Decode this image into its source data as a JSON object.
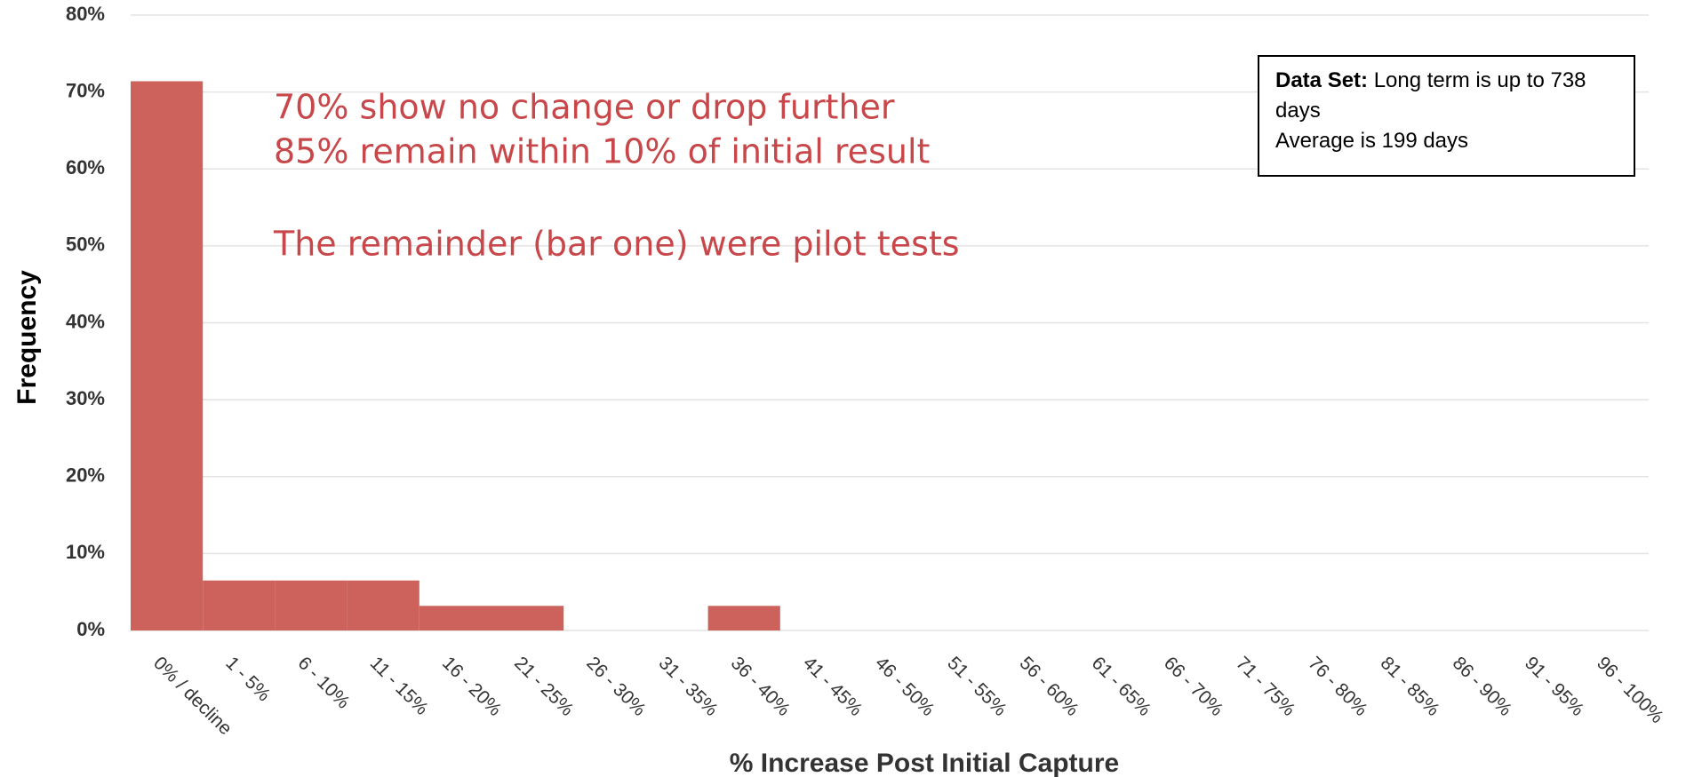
{
  "chart_data": {
    "type": "bar",
    "categories": [
      "0% / decline",
      "1 - 5%",
      "6 - 10%",
      "11 - 15%",
      "16 - 20%",
      "21 - 25%",
      "26 - 30%",
      "31 - 35%",
      "36 - 40%",
      "41 - 45%",
      "46 - 50%",
      "51 - 55%",
      "56 - 60%",
      "61 - 65%",
      "66 - 70%",
      "71 - 75%",
      "76 - 80%",
      "81 - 85%",
      "86 - 90%",
      "91 - 95%",
      "96 - 100%"
    ],
    "values": [
      71.4,
      6.5,
      6.5,
      6.5,
      3.2,
      3.2,
      0,
      0,
      3.2,
      0,
      0,
      0,
      0,
      0,
      0,
      0,
      0,
      0,
      0,
      0,
      0
    ],
    "color": "#cd625c",
    "ylim": [
      0,
      80
    ],
    "yticks": [
      {
        "value": 0,
        "label": "0%"
      },
      {
        "value": 10,
        "label": "10%"
      },
      {
        "value": 20,
        "label": "20%"
      },
      {
        "value": 30,
        "label": "30%"
      },
      {
        "value": 40,
        "label": "40%"
      },
      {
        "value": 50,
        "label": "50%"
      },
      {
        "value": 60,
        "label": "60%"
      },
      {
        "value": 70,
        "label": "70%"
      },
      {
        "value": 80,
        "label": "80%"
      }
    ],
    "grid": true,
    "xlabel": "% Increase Post Initial Capture",
    "ylabel": "Frequency",
    "annotations": [
      "70% show no change or drop further",
      "85% remain within 10% of initial result",
      "The remainder (bar one) were pilot tests"
    ],
    "box": {
      "title": "Data Set:",
      "lines": [
        "Long term is up to 738 days",
        "Average is 199 days"
      ]
    }
  }
}
